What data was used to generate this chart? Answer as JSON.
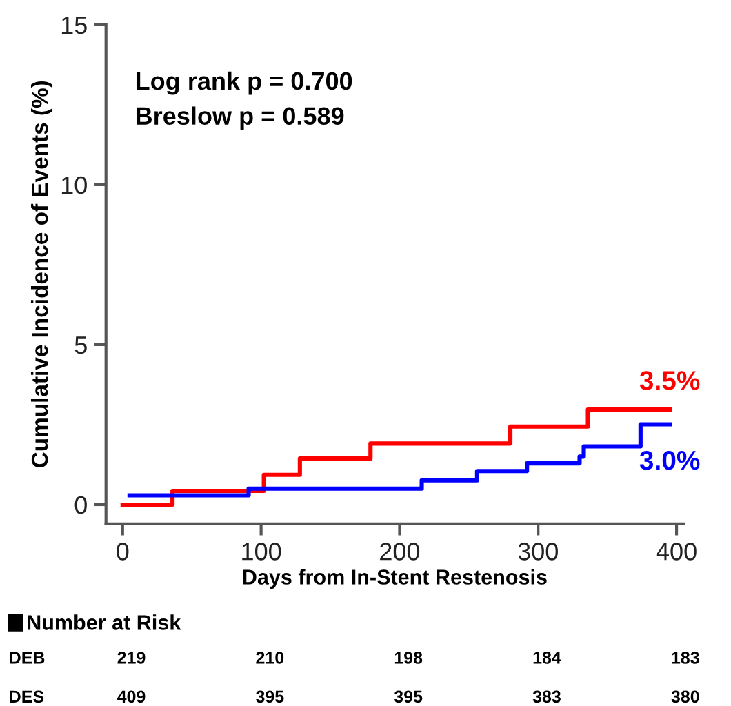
{
  "chart_data": {
    "type": "step",
    "xlabel": "Days from In-Stent Restenosis",
    "ylabel": "Cumulative Incidence of Events (%)",
    "xlim": [
      -12,
      405
    ],
    "ylim": [
      -0.6,
      15
    ],
    "xticks": [
      0,
      100,
      200,
      300,
      400
    ],
    "yticks": [
      0,
      5,
      10,
      15
    ],
    "grid": false,
    "legend": false,
    "series": [
      {
        "name": "3.5%",
        "color": "#ff0000",
        "x": [
          0,
          36,
          102,
          128,
          179,
          280,
          336,
          395
        ],
        "values": [
          0,
          0.43,
          0.93,
          1.44,
          1.91,
          2.44,
          2.97,
          2.97
        ]
      },
      {
        "name": "3.0%",
        "color": "#0000ff",
        "x": [
          5,
          91,
          216,
          256,
          292,
          330,
          333,
          374,
          395
        ],
        "values": [
          0.29,
          0.5,
          0.76,
          1.05,
          1.29,
          1.5,
          1.82,
          2.51,
          2.51
        ]
      }
    ],
    "annotations": [
      "Log rank p = 0.700",
      "Breslow p = 0.589",
      "Number at Risk",
      "DEB",
      "219",
      "210",
      "198",
      "184",
      "183",
      "DES",
      "409",
      "395",
      "395",
      "383",
      "380"
    ]
  }
}
